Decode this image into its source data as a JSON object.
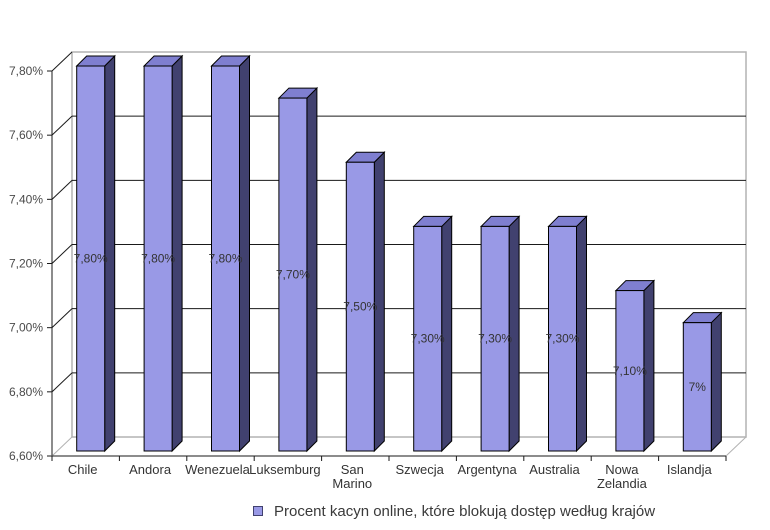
{
  "legend": {
    "label": "Procent kacyn online, które blokują dostęp według krajów",
    "marker_fill": "#9999e6",
    "marker_border": "#41416f"
  },
  "chart_data": {
    "type": "bar",
    "projection": "3d",
    "title": "",
    "xlabel": "",
    "ylabel": "",
    "categories": [
      "Chile",
      "Andora",
      "Wenezuela",
      "Luksemburg",
      "San Marino",
      "Szwecja",
      "Argentyna",
      "Australia",
      "Nowa Zelandia",
      "Islandja"
    ],
    "values": [
      7.8,
      7.8,
      7.8,
      7.7,
      7.5,
      7.3,
      7.3,
      7.3,
      7.1,
      7.0
    ],
    "bar_labels": [
      "7,80%",
      "7,80%",
      "7,80%",
      "7,70%",
      "7,50%",
      "7,30%",
      "7,30%",
      "7,30%",
      "7,10%",
      "7%"
    ],
    "y_ticks": [
      {
        "value": 6.6,
        "label": "6,60%"
      },
      {
        "value": 6.8,
        "label": "6,80%"
      },
      {
        "value": 7.0,
        "label": "7,00%"
      },
      {
        "value": 7.2,
        "label": "7,20%"
      },
      {
        "value": 7.4,
        "label": "7,40%"
      },
      {
        "value": 7.6,
        "label": "7,60%"
      },
      {
        "value": 7.8,
        "label": "7,80%"
      }
    ],
    "ylim": [
      6.6,
      7.8
    ],
    "grid": true,
    "legend_position": "bottom",
    "colors": {
      "bar_front": "#9999e6",
      "bar_side": "#41416f",
      "bar_top": "#7f7fd0",
      "bar_outline": "#000000",
      "gridline": "#1a1a1a",
      "axis": "#1a1a1a",
      "wall_border": "#b2b2b2",
      "tick_label": "#4a4a4a",
      "category_label": "#333333",
      "value_label": "#333333",
      "background": "#ffffff"
    }
  }
}
